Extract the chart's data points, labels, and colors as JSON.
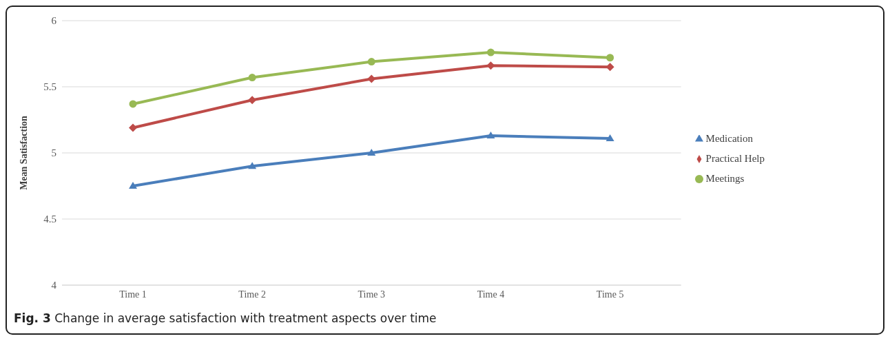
{
  "chart_data": {
    "type": "line",
    "ylabel": "Mean Satisfaction",
    "categories": [
      "Time 1",
      "Time 2",
      "Time 3",
      "Time 4",
      "Time 5"
    ],
    "series": [
      {
        "name": "Medication",
        "color": "#4a7ebb",
        "marker": "triangle",
        "values": [
          4.75,
          4.9,
          5.0,
          5.13,
          5.11
        ]
      },
      {
        "name": "Practical Help",
        "color": "#be4b48",
        "marker": "diamond",
        "values": [
          5.19,
          5.4,
          5.56,
          5.66,
          5.65
        ]
      },
      {
        "name": "Meetings",
        "color": "#98b954",
        "marker": "circle",
        "values": [
          5.37,
          5.57,
          5.69,
          5.76,
          5.72
        ]
      }
    ],
    "ylim": [
      4,
      6
    ],
    "yticks": [
      4,
      4.5,
      5,
      5.5,
      6
    ],
    "grid": "y",
    "legend": "right",
    "annotations": [
      "Fig. 3 Change in average satisfaction with treatment aspects over time"
    ]
  }
}
